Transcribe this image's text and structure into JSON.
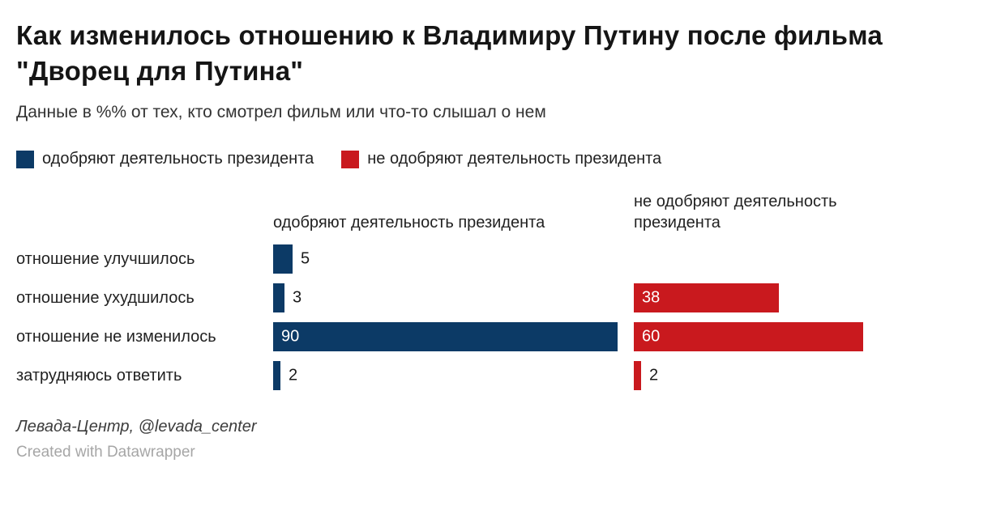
{
  "title": "Как изменилось отношению к Владимиру Путину после фильма \"Дворец для Путина\"",
  "subtitle": "Данные в %% от тех, кто смотрел фильм или что-то слышал о нем",
  "colors": {
    "approve": "#0c3a66",
    "disapprove": "#c9191e"
  },
  "legend": [
    {
      "label": "одобряют деятельность президента",
      "color": "#0c3a66"
    },
    {
      "label": "не одобряют деятельность президента",
      "color": "#c9191e"
    }
  ],
  "chart_data": {
    "type": "bar",
    "orientation": "horizontal",
    "title": "Как изменилось отношению к Владимиру Путину после фильма \"Дворец для Путина\"",
    "subtitle": "Данные в %% от тех, кто смотрел фильм или что-то слышал о нем",
    "categories": [
      "отношение улучшилось",
      "отношение ухудшилось",
      "отношение не изменилось",
      "затрудняюсь ответить"
    ],
    "series": [
      {
        "name": "одобряют деятельность президента",
        "color": "#0c3a66",
        "values": [
          5,
          3,
          90,
          2
        ]
      },
      {
        "name": "не одобряют деятельность президента",
        "color": "#c9191e",
        "values": [
          null,
          38,
          60,
          2
        ]
      }
    ],
    "xlim": [
      0,
      90
    ],
    "value_labels": true,
    "legend_position": "top",
    "grid": false
  },
  "footer": {
    "source": "Левада-Центр, @levada_center",
    "credit": "Created with Datawrapper"
  }
}
